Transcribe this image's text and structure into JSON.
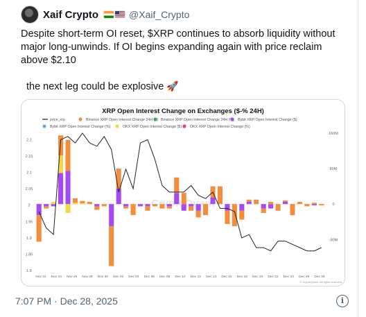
{
  "author": {
    "name": "Xaif Crypto",
    "handle": "@Xaif_Crypto",
    "flags": [
      "india-flag",
      "us-flag"
    ]
  },
  "tweet": {
    "text": "Despite short-term OI reset, $XRP continues to absorb liquidity without major long-unwinds. If OI begins expanding again with price reclaim above $2.10",
    "line2": "the next leg could be explosive",
    "emoji": "🚀"
  },
  "timestamp": "7:07 PM · Dec 28, 2025",
  "info_icon": "info-icon",
  "chart_data": {
    "type": "bar",
    "title": "XRP Open Interest Change on Exchanges ($-% 24H)",
    "watermark": "CryptoQuant",
    "credit": "© CryptoQuant. All rights reserved",
    "legend": [
      {
        "name": "price_xrp",
        "color": "#222222",
        "kind": "line"
      },
      {
        "name": "Binance XRP Open Interest Change 24H ($)",
        "color": "#f28e3c",
        "kind": "dot"
      },
      {
        "name": "Binance XRP Open Interest Change 24H (%)",
        "color": "#3aa757",
        "kind": "dot"
      },
      {
        "name": "Bybit XRP Open Interest Change ($)",
        "color": "#a64bf4",
        "kind": "dot"
      },
      {
        "name": "Bybit XRP Open Interest Change (%)",
        "color": "#4fb3e8",
        "kind": "dot"
      },
      {
        "name": "OKX XRP Open Interest Change ($)",
        "color": "#f2d64b",
        "kind": "dot"
      },
      {
        "name": "OKX XRP Open Interest Change (%)",
        "color": "#e8417a",
        "kind": "dot"
      }
    ],
    "x_tick_labels": [
      "Nov 22",
      "Nov 24",
      "Nov 26",
      "Nov 28",
      "Nov 30",
      "Dec 02",
      "Dec 04",
      "Dec 06",
      "Dec 08",
      "Dec 10",
      "Dec 12",
      "Dec 14",
      "Dec 16",
      "Dec 18",
      "Dec 20",
      "Dec 22",
      "Dec 24",
      "Dec 26",
      "Dec 28"
    ],
    "y_left_ticks": [
      "2.2",
      "2.15",
      "2.1",
      "2.05",
      "2",
      "1.95",
      "1.9",
      "1.85",
      "1.8"
    ],
    "y_left_range": [
      1.8,
      2.22
    ],
    "y_right_ticks": [
      "160M",
      "80M",
      "0",
      "-80M"
    ],
    "y_right_range": [
      -150,
      160
    ],
    "y_right_unit": "M",
    "bars": [
      {
        "binance": -60,
        "bybit": -25,
        "okx": 0
      },
      {
        "binance": -5,
        "bybit": -5,
        "okx": 0
      },
      {
        "binance": 0,
        "bybit": -5,
        "okx": 5
      },
      {
        "binance": 45,
        "bybit": 70,
        "okx": 40
      },
      {
        "binance": 70,
        "bybit": 75,
        "okx": -20
      },
      {
        "binance": 10,
        "bybit": 0,
        "okx": 3
      },
      {
        "binance": 5,
        "bybit": 0,
        "okx": 2
      },
      {
        "binance": 5,
        "bybit": 0,
        "okx": 0
      },
      {
        "binance": -8,
        "bybit": -5,
        "okx": 0
      },
      {
        "binance": -5,
        "bybit": 0,
        "okx": 0
      },
      {
        "binance": -90,
        "bybit": -50,
        "okx": 0
      },
      {
        "binance": 45,
        "bybit": 35,
        "okx": 0
      },
      {
        "binance": -5,
        "bybit": -5,
        "okx": 0
      },
      {
        "binance": -25,
        "bybit": 0,
        "okx": 0
      },
      {
        "binance": 0,
        "bybit": -5,
        "okx": 0
      },
      {
        "binance": -10,
        "bybit": -5,
        "okx": 0
      },
      {
        "binance": -5,
        "bybit": 0,
        "okx": 0
      },
      {
        "binance": -10,
        "bybit": 0,
        "okx": 0
      },
      {
        "binance": -5,
        "bybit": -5,
        "okx": 0
      },
      {
        "binance": 35,
        "bybit": 25,
        "okx": 0
      },
      {
        "binance": 25,
        "bybit": -15,
        "okx": 0
      },
      {
        "binance": -10,
        "bybit": -5,
        "okx": 0
      },
      {
        "binance": -15,
        "bybit": -15,
        "okx": 0
      },
      {
        "binance": -25,
        "bybit": 0,
        "okx": 0
      },
      {
        "binance": 25,
        "bybit": 15,
        "okx": 0
      },
      {
        "binance": 40,
        "bybit": 0,
        "okx": 0
      },
      {
        "binance": -30,
        "bybit": -15,
        "okx": 0
      },
      {
        "binance": -50,
        "bybit": 0,
        "okx": 0
      },
      {
        "binance": -20,
        "bybit": -15,
        "okx": 0
      },
      {
        "binance": 5,
        "bybit": 5,
        "okx": 0
      },
      {
        "binance": 10,
        "bybit": 0,
        "okx": 0
      },
      {
        "binance": -10,
        "bybit": -10,
        "okx": 0
      },
      {
        "binance": 5,
        "bybit": -10,
        "okx": 0
      },
      {
        "binance": -15,
        "bybit": 0,
        "okx": 0
      },
      {
        "binance": 3,
        "bybit": 5,
        "okx": 0
      },
      {
        "binance": -25,
        "bybit": 0,
        "okx": 0
      },
      {
        "binance": 5,
        "bybit": 0,
        "okx": 0
      },
      {
        "binance": -5,
        "bybit": 0,
        "okx": 0
      },
      {
        "binance": 3,
        "bybit": -3,
        "okx": 0
      },
      {
        "binance": -3,
        "bybit": 0,
        "okx": 0
      }
    ],
    "price_xrp": [
      1.98,
      1.93,
      1.91,
      2.2,
      2.21,
      2.19,
      2.22,
      2.19,
      2.18,
      2.21,
      2.17,
      2.04,
      2.11,
      2.05,
      2.19,
      2.2,
      2.14,
      2.06,
      2.04,
      2.04,
      2.04,
      2.06,
      2.03,
      2.02,
      2.04,
      1.99,
      1.99,
      1.98,
      1.9,
      1.91,
      1.87,
      1.87,
      1.86,
      1.89,
      1.89,
      1.88,
      1.87,
      1.86,
      1.86,
      1.87
    ]
  }
}
